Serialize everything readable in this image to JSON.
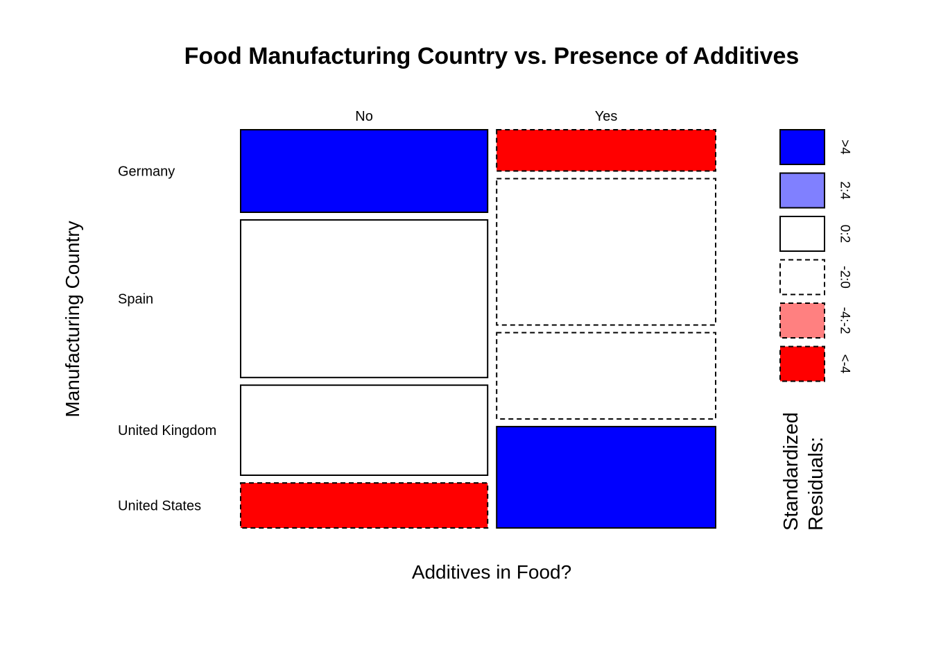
{
  "chart_data": {
    "type": "mosaic",
    "title": "Food Manufacturing Country vs. Presence of Additives",
    "xlabel": "Additives in Food?",
    "ylabel": "Manufacturing Country",
    "columns": [
      "No",
      "Yes"
    ],
    "rows": [
      "Germany",
      "Spain",
      "United Kingdom",
      "United States"
    ],
    "column_proportions": [
      0.53,
      0.47
    ],
    "cells": [
      {
        "column": "No",
        "row": "Germany",
        "proportion": 0.22,
        "residual_class": ">4"
      },
      {
        "column": "No",
        "row": "Spain",
        "proportion": 0.42,
        "residual_class": "0:2"
      },
      {
        "column": "No",
        "row": "United Kingdom",
        "proportion": 0.24,
        "residual_class": "0:2"
      },
      {
        "column": "No",
        "row": "United States",
        "proportion": 0.12,
        "residual_class": "<-4"
      },
      {
        "column": "Yes",
        "row": "Germany",
        "proportion": 0.11,
        "residual_class": "<-4"
      },
      {
        "column": "Yes",
        "row": "Spain",
        "proportion": 0.39,
        "residual_class": "-2:0"
      },
      {
        "column": "Yes",
        "row": "United Kingdom",
        "proportion": 0.23,
        "residual_class": "-2:0"
      },
      {
        "column": "Yes",
        "row": "United States",
        "proportion": 0.27,
        "residual_class": ">4"
      }
    ],
    "legend": {
      "title_lines": [
        "Standardized",
        "Residuals:"
      ],
      "placement": "right",
      "items": [
        {
          "label": ">4",
          "color": "#0000ff",
          "dashed": false
        },
        {
          "label": "2:4",
          "color": "#8080ff",
          "dashed": false
        },
        {
          "label": "0:2",
          "color": "#ffffff",
          "dashed": false
        },
        {
          "label": "-2:0",
          "color": "#ffffff",
          "dashed": true
        },
        {
          "label": "-4:-2",
          "color": "#ff8080",
          "dashed": true
        },
        {
          "label": "<-4",
          "color": "#ff0000",
          "dashed": true
        }
      ]
    }
  }
}
